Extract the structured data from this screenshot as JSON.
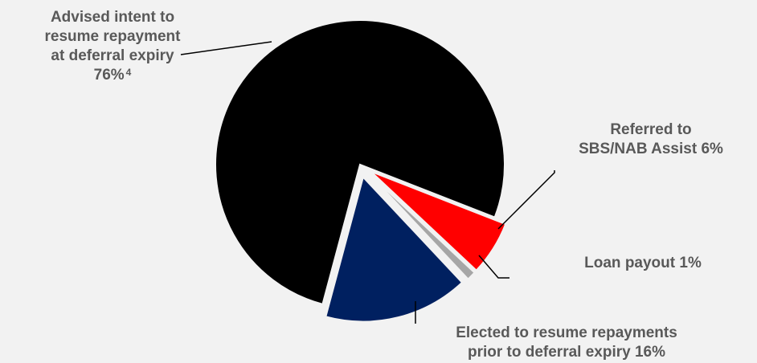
{
  "chart_data": {
    "type": "pie",
    "title": "",
    "slices": [
      {
        "label_lines": [
          "Advised intent to",
          "resume repayment",
          "at deferral expiry",
          "76%"
        ],
        "superscript": "4",
        "value": 76,
        "color": "#000000"
      },
      {
        "label_lines": [
          "Referred to",
          "SBS/NAB Assist 6%"
        ],
        "value": 6,
        "color": "#ff0000"
      },
      {
        "label_lines": [
          "Loan payout 1%"
        ],
        "value": 1,
        "color": "#a6a6a6"
      },
      {
        "label_lines": [
          "Elected to resume repayments",
          "prior to deferral expiry 16%"
        ],
        "value": 16,
        "color": "#002060"
      }
    ]
  }
}
